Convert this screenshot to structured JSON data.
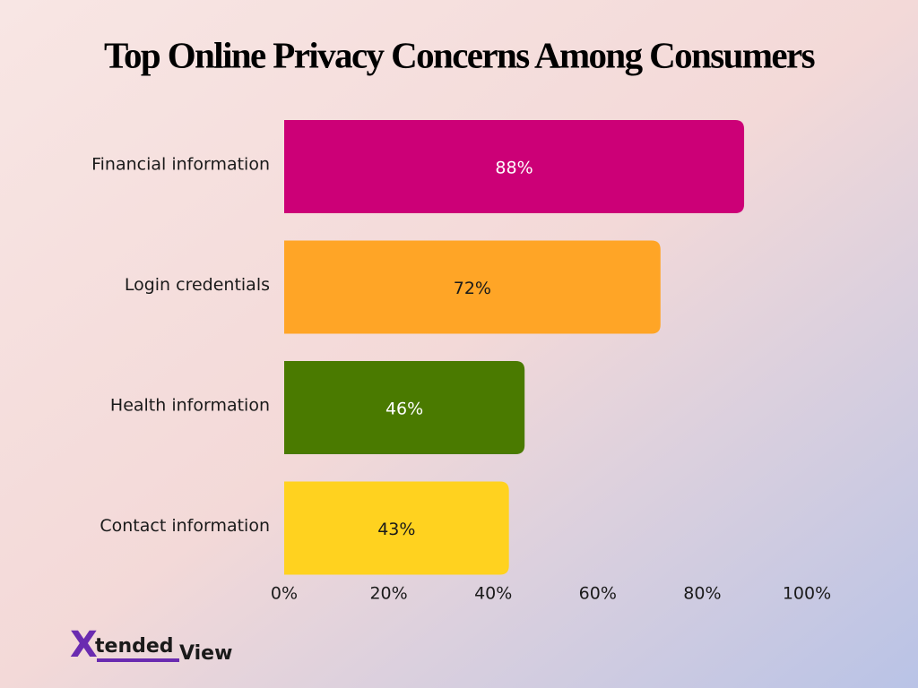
{
  "chart_data": {
    "type": "bar",
    "orientation": "horizontal",
    "title": "Top Online Privacy Concerns Among Consumers",
    "categories": [
      "Financial information",
      "Login credentials",
      "Health information",
      "Contact information"
    ],
    "values": [
      88,
      72,
      46,
      43
    ],
    "value_labels": [
      "88%",
      "72%",
      "46%",
      "43%"
    ],
    "colors": [
      "#cc0077",
      "#ffa526",
      "#4a7a00",
      "#ffd21f"
    ],
    "xlim": [
      0,
      100
    ],
    "xticks": [
      {
        "value": 0,
        "label": "0%"
      },
      {
        "value": 20,
        "label": "20%"
      },
      {
        "value": 40,
        "label": "40%"
      },
      {
        "value": 60,
        "label": "60%"
      },
      {
        "value": 80,
        "label": "80%"
      },
      {
        "value": 100,
        "label": "100%"
      }
    ],
    "grid": false
  },
  "logo": [
    "X",
    "tended",
    "View"
  ]
}
